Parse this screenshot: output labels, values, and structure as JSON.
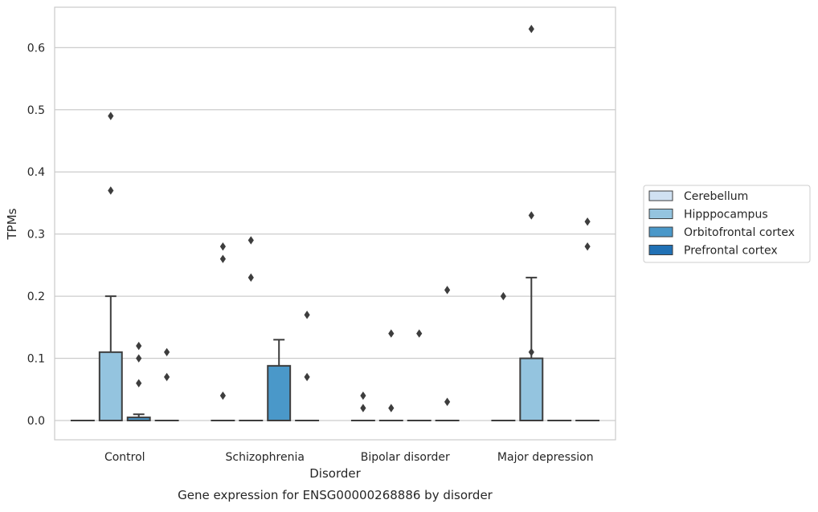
{
  "chart_data": {
    "type": "box",
    "title": "",
    "caption": "Gene expression for ENSG00000268886 by disorder",
    "xlabel": "Disorder",
    "ylabel": "TPMs",
    "ylim": [
      -0.031,
      0.665
    ],
    "yticks": [
      0.0,
      0.1,
      0.2,
      0.3,
      0.4,
      0.5,
      0.6
    ],
    "ytick_labels": [
      "0.0",
      "0.1",
      "0.2",
      "0.3",
      "0.4",
      "0.5",
      "0.6"
    ],
    "grid": "horizontal",
    "legend_position": "right",
    "categories": [
      "Control",
      "Schizophrenia",
      "Bipolar disorder",
      "Major depression"
    ],
    "series": [
      {
        "name": "Cerebellum",
        "color": "#d0e1f2",
        "boxes": [
          {
            "q1": 0,
            "median": 0,
            "q3": 0,
            "whisker_low": 0,
            "whisker_high": 0,
            "outliers": []
          },
          {
            "q1": 0,
            "median": 0,
            "q3": 0,
            "whisker_low": 0,
            "whisker_high": 0,
            "outliers": [
              0.04,
              0.26,
              0.28
            ]
          },
          {
            "q1": 0,
            "median": 0,
            "q3": 0,
            "whisker_low": 0,
            "whisker_high": 0,
            "outliers": [
              0.02,
              0.04
            ]
          },
          {
            "q1": 0,
            "median": 0,
            "q3": 0,
            "whisker_low": 0,
            "whisker_high": 0,
            "outliers": [
              0.2
            ]
          }
        ]
      },
      {
        "name": "Hipppocampus",
        "color": "#94c4df",
        "boxes": [
          {
            "q1": 0,
            "median": 0,
            "q3": 0.11,
            "whisker_low": 0,
            "whisker_high": 0.2,
            "outliers": [
              0.37,
              0.49
            ]
          },
          {
            "q1": 0,
            "median": 0,
            "q3": 0,
            "whisker_low": 0,
            "whisker_high": 0,
            "outliers": [
              0.23,
              0.29
            ]
          },
          {
            "q1": 0,
            "median": 0,
            "q3": 0,
            "whisker_low": 0,
            "whisker_high": 0,
            "outliers": [
              0.02,
              0.14
            ]
          },
          {
            "q1": 0,
            "median": 0,
            "q3": 0.1,
            "whisker_low": 0,
            "whisker_high": 0.23,
            "outliers": [
              0.11,
              0.33,
              0.63
            ]
          }
        ]
      },
      {
        "name": "Orbitofrontal cortex",
        "color": "#4a98c9",
        "boxes": [
          {
            "q1": 0,
            "median": 0,
            "q3": 0.005,
            "whisker_low": 0,
            "whisker_high": 0.01,
            "outliers": [
              0.06,
              0.1,
              0.12
            ]
          },
          {
            "q1": 0,
            "median": 0,
            "q3": 0.088,
            "whisker_low": 0,
            "whisker_high": 0.13,
            "outliers": []
          },
          {
            "q1": 0,
            "median": 0,
            "q3": 0,
            "whisker_low": 0,
            "whisker_high": 0,
            "outliers": [
              0.14
            ]
          },
          {
            "q1": 0,
            "median": 0,
            "q3": 0,
            "whisker_low": 0,
            "whisker_high": 0,
            "outliers": []
          }
        ]
      },
      {
        "name": "Prefrontal cortex",
        "color": "#2171b5",
        "boxes": [
          {
            "q1": 0,
            "median": 0,
            "q3": 0,
            "whisker_low": 0,
            "whisker_high": 0,
            "outliers": [
              0.07,
              0.11
            ]
          },
          {
            "q1": 0,
            "median": 0,
            "q3": 0,
            "whisker_low": 0,
            "whisker_high": 0,
            "outliers": [
              0.07,
              0.17
            ]
          },
          {
            "q1": 0,
            "median": 0,
            "q3": 0,
            "whisker_low": 0,
            "whisker_high": 0,
            "outliers": [
              0.03,
              0.21
            ]
          },
          {
            "q1": 0,
            "median": 0,
            "q3": 0,
            "whisker_low": 0,
            "whisker_high": 0,
            "outliers": [
              0.28,
              0.32
            ]
          }
        ]
      }
    ],
    "colors": {
      "grid": "#cccccc",
      "axes_edge": "#cccccc",
      "box_edge": "#3d3d3d",
      "text": "#262626"
    }
  }
}
